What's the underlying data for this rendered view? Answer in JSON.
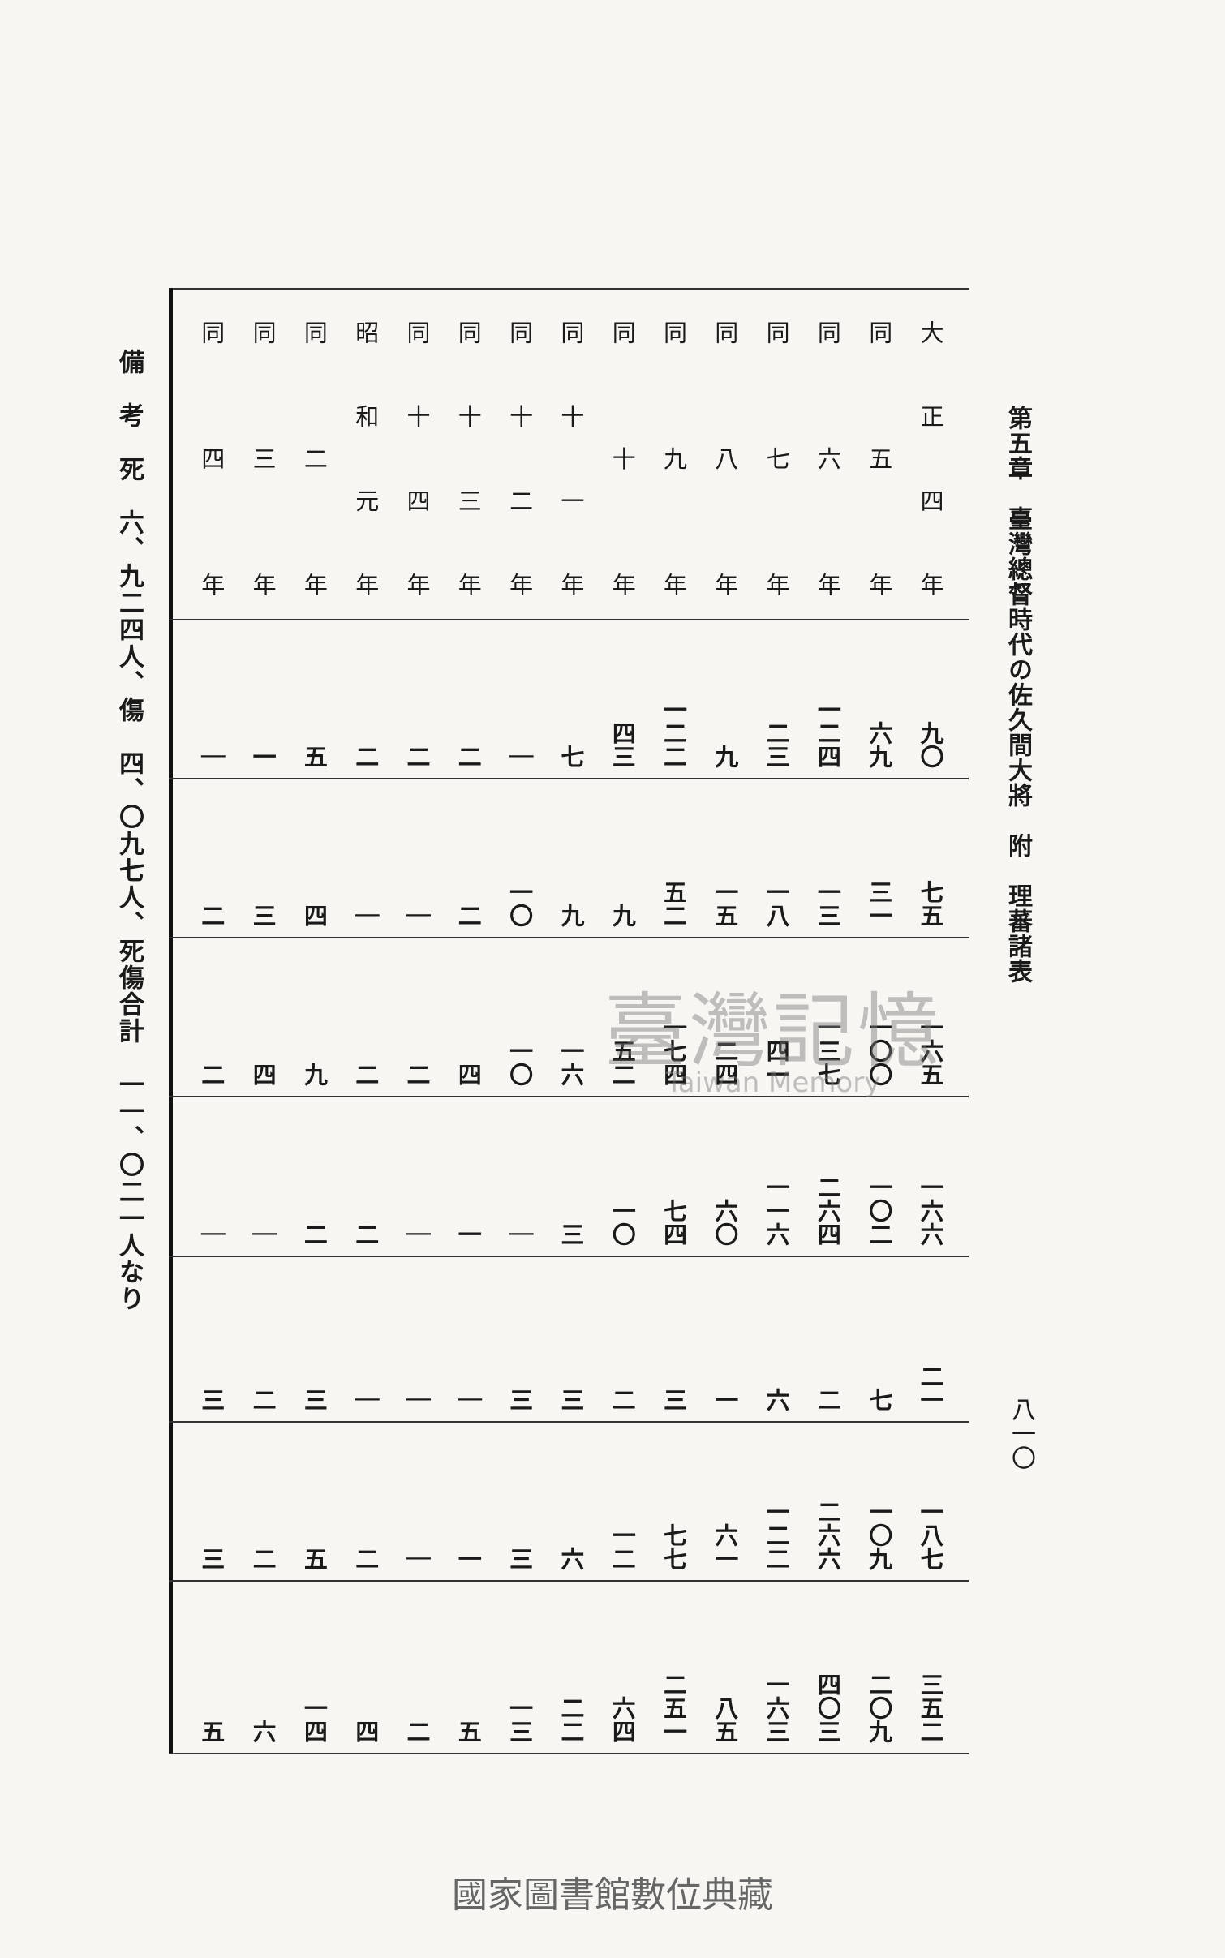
{
  "header": {
    "title": "第五章　臺灣總督時代の佐久間大將　附　理蕃諸表",
    "page_number": "八一〇"
  },
  "note": "備　考　死　六、九二四人、傷　四、〇九七人、死傷合計　一一、〇二一人なり",
  "table": {
    "years": [
      "大正四年",
      "同五年",
      "同六年",
      "同七年",
      "同八年",
      "同九年",
      "同十年",
      "同十一年",
      "同十二年",
      "同十三年",
      "同十四年",
      "昭和元年",
      "同二年",
      "同三年",
      "同四年"
    ],
    "rows": [
      [
        "九〇",
        "六九",
        "一二四",
        "二三",
        "九",
        "一二二",
        "四三",
        "七",
        "｜",
        "二",
        "二",
        "二",
        "五",
        "一",
        "｜"
      ],
      [
        "七五",
        "三一",
        "一三",
        "一八",
        "一五",
        "五二",
        "九",
        "九",
        "一〇",
        "二",
        "｜",
        "｜",
        "四",
        "三",
        "二"
      ],
      [
        "一六五",
        "一〇〇",
        "一三七",
        "四一",
        "二四",
        "一七四",
        "五二",
        "一六",
        "一〇",
        "四",
        "二",
        "二",
        "九",
        "四",
        "二"
      ],
      [
        "一六六",
        "一〇二",
        "二六四",
        "一一六",
        "六〇",
        "七四",
        "一〇",
        "三",
        "｜",
        "一",
        "｜",
        "二",
        "二",
        "｜",
        "｜"
      ],
      [
        "二一",
        "七",
        "二",
        "六",
        "一",
        "三",
        "二",
        "三",
        "三",
        "｜",
        "｜",
        "｜",
        "三",
        "二",
        "三"
      ],
      [
        "一八七",
        "一〇九",
        "二六六",
        "一二二",
        "六一",
        "七七",
        "一二",
        "六",
        "三",
        "一",
        "｜",
        "二",
        "五",
        "二",
        "三"
      ],
      [
        "三五二",
        "二〇九",
        "四〇三",
        "一六三",
        "八五",
        "二五一",
        "六四",
        "二二",
        "一三",
        "五",
        "二",
        "四",
        "一四",
        "六",
        "五"
      ]
    ]
  },
  "watermark": {
    "title": "臺灣記憶",
    "subtitle": "Taiwan Memory"
  },
  "footer": "國家圖書館數位典藏"
}
